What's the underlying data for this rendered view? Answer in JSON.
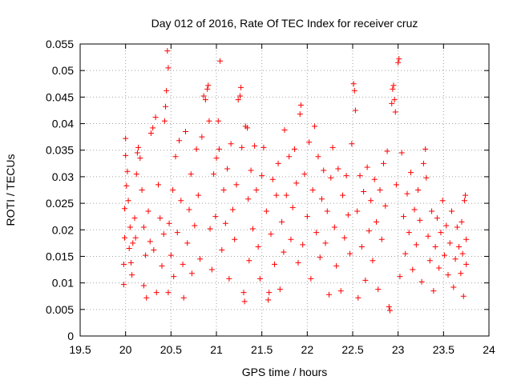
{
  "chart_data": {
    "type": "scatter",
    "title": "Day 012 of 2016, Rate Of TEC Index for receiver cruz",
    "xlabel": "GPS time / hours",
    "ylabel": "ROTI / TECUs",
    "xlim": [
      19.5,
      24
    ],
    "ylim": [
      0,
      0.055
    ],
    "xticks": [
      "19.5",
      "20",
      "20.5",
      "21",
      "21.5",
      "22",
      "22.5",
      "23",
      "23.5",
      "24"
    ],
    "yticks": [
      "0",
      "0.005",
      "0.01",
      "0.015",
      "0.02",
      "0.025",
      "0.03",
      "0.035",
      "0.04",
      "0.045",
      "0.05",
      "0.055"
    ],
    "grid": true,
    "legend": "none",
    "marker": "plus",
    "marker_color": "#ff0000",
    "series": [
      {
        "points": [
          [
            19.98,
            0.0097
          ],
          [
            19.98,
            0.0135
          ],
          [
            19.99,
            0.0185
          ],
          [
            19.99,
            0.024
          ],
          [
            20.0,
            0.034
          ],
          [
            20.0,
            0.0372
          ],
          [
            20.01,
            0.0283
          ],
          [
            20.02,
            0.031
          ],
          [
            20.03,
            0.0255
          ],
          [
            20.04,
            0.0165
          ],
          [
            20.05,
            0.0205
          ],
          [
            20.06,
            0.0138
          ],
          [
            20.07,
            0.0115
          ],
          [
            20.08,
            0.0175
          ],
          [
            20.1,
            0.0222
          ],
          [
            20.11,
            0.0185
          ],
          [
            20.12,
            0.0305
          ],
          [
            20.13,
            0.0345
          ],
          [
            20.14,
            0.0355
          ],
          [
            20.16,
            0.0335
          ],
          [
            20.18,
            0.0275
          ],
          [
            20.2,
            0.0205
          ],
          [
            20.2,
            0.0095
          ],
          [
            20.22,
            0.0152
          ],
          [
            20.23,
            0.0072
          ],
          [
            20.25,
            0.0235
          ],
          [
            20.27,
            0.0178
          ],
          [
            20.28,
            0.0382
          ],
          [
            20.3,
            0.0392
          ],
          [
            20.31,
            0.0162
          ],
          [
            20.33,
            0.0412
          ],
          [
            20.34,
            0.0082
          ],
          [
            20.36,
            0.0285
          ],
          [
            20.38,
            0.0222
          ],
          [
            20.4,
            0.0132
          ],
          [
            20.42,
            0.0192
          ],
          [
            20.43,
            0.0405
          ],
          [
            20.44,
            0.0432
          ],
          [
            20.45,
            0.0462
          ],
          [
            20.46,
            0.0537
          ],
          [
            20.47,
            0.0505
          ],
          [
            20.47,
            0.0082
          ],
          [
            20.48,
            0.0212
          ],
          [
            20.5,
            0.0152
          ],
          [
            20.52,
            0.0275
          ],
          [
            20.53,
            0.0112
          ],
          [
            20.55,
            0.0338
          ],
          [
            20.57,
            0.0195
          ],
          [
            20.59,
            0.0368
          ],
          [
            20.61,
            0.0255
          ],
          [
            20.63,
            0.0135
          ],
          [
            20.64,
            0.0072
          ],
          [
            20.66,
            0.0385
          ],
          [
            20.68,
            0.0175
          ],
          [
            20.7,
            0.0238
          ],
          [
            20.72,
            0.0305
          ],
          [
            20.73,
            0.0118
          ],
          [
            20.76,
            0.0208
          ],
          [
            20.78,
            0.0352
          ],
          [
            20.8,
            0.0265
          ],
          [
            20.82,
            0.0145
          ],
          [
            20.84,
            0.0375
          ],
          [
            20.86,
            0.0452
          ],
          [
            20.88,
            0.0445
          ],
          [
            20.9,
            0.0465
          ],
          [
            20.91,
            0.0472
          ],
          [
            20.92,
            0.0405
          ],
          [
            20.93,
            0.0202
          ],
          [
            20.95,
            0.0125
          ],
          [
            20.97,
            0.0305
          ],
          [
            20.99,
            0.0225
          ],
          [
            21.0,
            0.0335
          ],
          [
            21.02,
            0.0405
          ],
          [
            21.03,
            0.0352
          ],
          [
            21.04,
            0.0518
          ],
          [
            21.06,
            0.0162
          ],
          [
            21.08,
            0.0275
          ],
          [
            21.1,
            0.0212
          ],
          [
            21.12,
            0.0315
          ],
          [
            21.14,
            0.0108
          ],
          [
            21.16,
            0.0362
          ],
          [
            21.18,
            0.0238
          ],
          [
            21.2,
            0.0182
          ],
          [
            21.22,
            0.0285
          ],
          [
            21.24,
            0.0445
          ],
          [
            21.26,
            0.0452
          ],
          [
            21.27,
            0.0468
          ],
          [
            21.28,
            0.0355
          ],
          [
            21.3,
            0.0082
          ],
          [
            21.31,
            0.0065
          ],
          [
            21.32,
            0.0395
          ],
          [
            21.34,
            0.0392
          ],
          [
            21.35,
            0.0258
          ],
          [
            21.36,
            0.0142
          ],
          [
            21.38,
            0.0312
          ],
          [
            21.4,
            0.0202
          ],
          [
            21.42,
            0.0358
          ],
          [
            21.44,
            0.0275
          ],
          [
            21.46,
            0.0168
          ],
          [
            21.48,
            0.0108
          ],
          [
            21.5,
            0.0302
          ],
          [
            21.52,
            0.0355
          ],
          [
            21.55,
            0.0235
          ],
          [
            21.57,
            0.0068
          ],
          [
            21.58,
            0.0082
          ],
          [
            21.6,
            0.0192
          ],
          [
            21.62,
            0.0295
          ],
          [
            21.64,
            0.0135
          ],
          [
            21.66,
            0.0265
          ],
          [
            21.68,
            0.0325
          ],
          [
            21.7,
            0.0088
          ],
          [
            21.72,
            0.0215
          ],
          [
            21.74,
            0.0158
          ],
          [
            21.75,
            0.0388
          ],
          [
            21.77,
            0.0265
          ],
          [
            21.8,
            0.0338
          ],
          [
            21.82,
            0.0182
          ],
          [
            21.84,
            0.0242
          ],
          [
            21.86,
            0.0352
          ],
          [
            21.88,
            0.0288
          ],
          [
            21.9,
            0.0138
          ],
          [
            21.92,
            0.0418
          ],
          [
            21.93,
            0.0435
          ],
          [
            21.95,
            0.0172
          ],
          [
            21.97,
            0.0305
          ],
          [
            22.0,
            0.0225
          ],
          [
            22.02,
            0.0365
          ],
          [
            22.04,
            0.0108
          ],
          [
            22.06,
            0.0275
          ],
          [
            22.08,
            0.0395
          ],
          [
            22.1,
            0.0195
          ],
          [
            22.12,
            0.0338
          ],
          [
            22.14,
            0.0148
          ],
          [
            22.16,
            0.0258
          ],
          [
            22.18,
            0.0312
          ],
          [
            22.2,
            0.0175
          ],
          [
            22.22,
            0.0235
          ],
          [
            22.24,
            0.0078
          ],
          [
            22.26,
            0.0298
          ],
          [
            22.28,
            0.0355
          ],
          [
            22.3,
            0.0205
          ],
          [
            22.32,
            0.0132
          ],
          [
            22.34,
            0.0315
          ],
          [
            22.37,
            0.0085
          ],
          [
            22.39,
            0.0265
          ],
          [
            22.41,
            0.0185
          ],
          [
            22.43,
            0.0302
          ],
          [
            22.45,
            0.0228
          ],
          [
            22.47,
            0.0155
          ],
          [
            22.49,
            0.0362
          ],
          [
            22.51,
            0.0475
          ],
          [
            22.52,
            0.0462
          ],
          [
            22.53,
            0.0425
          ],
          [
            22.55,
            0.0235
          ],
          [
            22.56,
            0.0072
          ],
          [
            22.58,
            0.0302
          ],
          [
            22.6,
            0.0168
          ],
          [
            22.62,
            0.0272
          ],
          [
            22.64,
            0.0105
          ],
          [
            22.66,
            0.0318
          ],
          [
            22.68,
            0.0198
          ],
          [
            22.7,
            0.0255
          ],
          [
            22.72,
            0.0142
          ],
          [
            22.74,
            0.0295
          ],
          [
            22.76,
            0.0215
          ],
          [
            22.78,
            0.0088
          ],
          [
            22.8,
            0.0275
          ],
          [
            22.82,
            0.0182
          ],
          [
            22.84,
            0.0325
          ],
          [
            22.86,
            0.0245
          ],
          [
            22.88,
            0.0348
          ],
          [
            22.9,
            0.0055
          ],
          [
            22.91,
            0.0048
          ],
          [
            22.93,
            0.0438
          ],
          [
            22.94,
            0.0465
          ],
          [
            22.95,
            0.0472
          ],
          [
            22.96,
            0.0445
          ],
          [
            22.97,
            0.0422
          ],
          [
            22.98,
            0.0285
          ],
          [
            23.0,
            0.0515
          ],
          [
            23.01,
            0.0522
          ],
          [
            23.02,
            0.0112
          ],
          [
            23.04,
            0.0345
          ],
          [
            23.06,
            0.0225
          ],
          [
            23.08,
            0.0155
          ],
          [
            23.1,
            0.0268
          ],
          [
            23.12,
            0.0195
          ],
          [
            23.14,
            0.0308
          ],
          [
            23.16,
            0.0125
          ],
          [
            23.18,
            0.0238
          ],
          [
            23.2,
            0.0172
          ],
          [
            23.22,
            0.0275
          ],
          [
            23.24,
            0.0218
          ],
          [
            23.26,
            0.0102
          ],
          [
            23.28,
            0.0325
          ],
          [
            23.3,
            0.0352
          ],
          [
            23.31,
            0.0298
          ],
          [
            23.33,
            0.0188
          ],
          [
            23.35,
            0.0142
          ],
          [
            23.37,
            0.0235
          ],
          [
            23.39,
            0.0085
          ],
          [
            23.41,
            0.0168
          ],
          [
            23.43,
            0.0222
          ],
          [
            23.45,
            0.0128
          ],
          [
            23.47,
            0.0195
          ],
          [
            23.49,
            0.0255
          ],
          [
            23.51,
            0.0152
          ],
          [
            23.53,
            0.0208
          ],
          [
            23.55,
            0.0115
          ],
          [
            23.57,
            0.0175
          ],
          [
            23.59,
            0.0235
          ],
          [
            23.61,
            0.0092
          ],
          [
            23.63,
            0.0145
          ],
          [
            23.65,
            0.0205
          ],
          [
            23.67,
            0.0168
          ],
          [
            23.69,
            0.0118
          ],
          [
            23.7,
            0.0215
          ],
          [
            23.71,
            0.0155
          ],
          [
            23.72,
            0.0075
          ],
          [
            23.73,
            0.0255
          ],
          [
            23.74,
            0.0265
          ],
          [
            23.75,
            0.0135
          ],
          [
            23.75,
            0.0182
          ]
        ]
      }
    ]
  }
}
